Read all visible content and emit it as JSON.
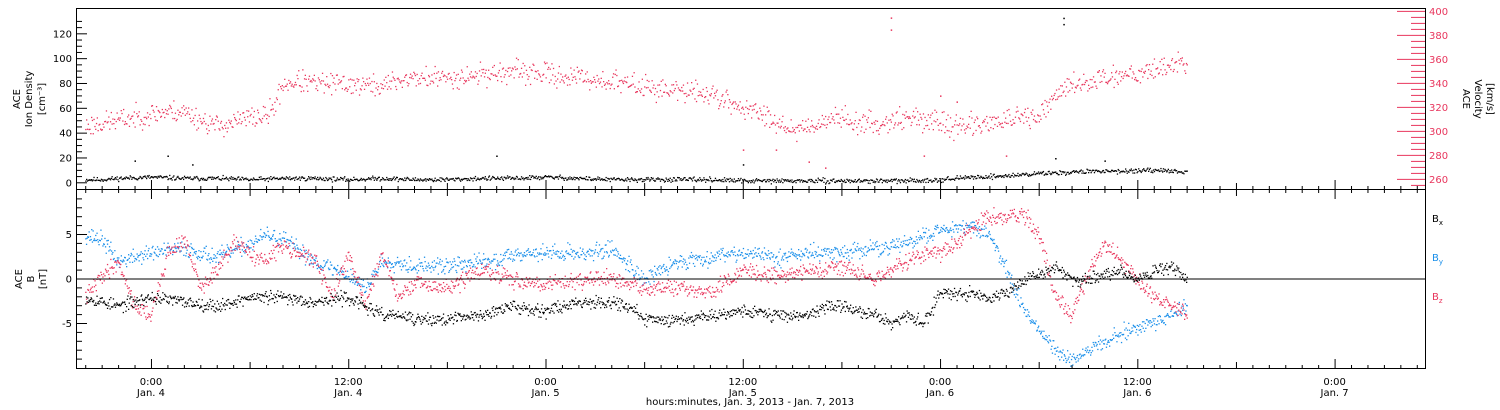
{
  "colors": {
    "black": "#000000",
    "pink": "#e8365d",
    "blue": "#1a8fea"
  },
  "chart_data": [
    {
      "type": "scatter",
      "panel": "top",
      "ylabel_left": [
        "ACE",
        "Ion Density",
        "[cm⁻³]"
      ],
      "ylabel_right": [
        "ACE",
        "Velocity",
        "[km/s]"
      ],
      "ylim_left": [
        -5,
        140
      ],
      "yticks_left": [
        0,
        20,
        40,
        60,
        80,
        100,
        120
      ],
      "ylim_right": [
        252,
        402
      ],
      "yticks_right": [
        260,
        280,
        300,
        320,
        340,
        360,
        380,
        400
      ],
      "series": [
        {
          "axis": "left",
          "color": "#000000",
          "points": [
            [
              -4,
              3
            ],
            [
              -3,
              3
            ],
            [
              -2,
              4
            ],
            [
              0,
              5
            ],
            [
              2,
              4
            ],
            [
              4,
              4
            ],
            [
              6,
              3
            ],
            [
              8,
              4
            ],
            [
              10,
              4
            ],
            [
              12,
              3
            ],
            [
              14,
              4
            ],
            [
              16,
              3
            ],
            [
              18,
              3
            ],
            [
              20,
              4
            ],
            [
              22,
              4
            ],
            [
              24,
              5
            ],
            [
              26,
              4
            ],
            [
              28,
              3
            ],
            [
              30,
              3
            ],
            [
              32,
              3
            ],
            [
              34,
              3
            ],
            [
              36,
              2
            ],
            [
              38,
              2
            ],
            [
              40,
              2
            ],
            [
              42,
              2
            ],
            [
              44,
              2
            ],
            [
              46,
              2
            ],
            [
              48,
              3
            ],
            [
              50,
              5
            ],
            [
              52,
              6
            ],
            [
              54,
              8
            ],
            [
              56,
              9
            ],
            [
              58,
              10
            ],
            [
              60,
              10
            ],
            [
              62,
              10
            ],
            [
              63,
              9
            ]
          ],
          "outliers": [
            [
              -1,
              18
            ],
            [
              1,
              22
            ],
            [
              2.5,
              15
            ],
            [
              21,
              22
            ],
            [
              36,
              15
            ],
            [
              55,
              20
            ],
            [
              58,
              18
            ],
            [
              55.5,
              133
            ],
            [
              55.5,
              128
            ]
          ]
        },
        {
          "axis": "right",
          "color": "#e8365d",
          "points": [
            [
              -4,
              305
            ],
            [
              -2,
              310
            ],
            [
              -1,
              312
            ],
            [
              0,
              315
            ],
            [
              1,
              317
            ],
            [
              2,
              317
            ],
            [
              3,
              310
            ],
            [
              4,
              305
            ],
            [
              5,
              308
            ],
            [
              6,
              312
            ],
            [
              7,
              313
            ],
            [
              7.5,
              322
            ],
            [
              8,
              340
            ],
            [
              9,
              342
            ],
            [
              10,
              340
            ],
            [
              12,
              340
            ],
            [
              14,
              338
            ],
            [
              15,
              343
            ],
            [
              16,
              345
            ],
            [
              18,
              345
            ],
            [
              20,
              348
            ],
            [
              22,
              350
            ],
            [
              24,
              348
            ],
            [
              26,
              345
            ],
            [
              28,
              342
            ],
            [
              30,
              338
            ],
            [
              32,
              334
            ],
            [
              34,
              332
            ],
            [
              35,
              325
            ],
            [
              36,
              320
            ],
            [
              37,
              315
            ],
            [
              38,
              310
            ],
            [
              39,
              302
            ],
            [
              40,
              305
            ],
            [
              41,
              310
            ],
            [
              42,
              312
            ],
            [
              43,
              308
            ],
            [
              44,
              306
            ],
            [
              45,
              310
            ],
            [
              46,
              312
            ],
            [
              48,
              308
            ],
            [
              49,
              304
            ],
            [
              50,
              306
            ],
            [
              52,
              310
            ],
            [
              54,
              312
            ],
            [
              54.5,
              320
            ],
            [
              55,
              330
            ],
            [
              56,
              340
            ],
            [
              57,
              342
            ],
            [
              58,
              345
            ],
            [
              59,
              348
            ],
            [
              60,
              350
            ],
            [
              61,
              352
            ],
            [
              62,
              356
            ],
            [
              62.5,
              358
            ],
            [
              63,
              355
            ]
          ],
          "outliers": [
            [
              45,
              395
            ],
            [
              45,
              385
            ],
            [
              40,
              275
            ],
            [
              41,
              270
            ],
            [
              47,
              280
            ],
            [
              52,
              280
            ],
            [
              48,
              330
            ],
            [
              49,
              325
            ],
            [
              36,
              285
            ],
            [
              38,
              285
            ]
          ]
        }
      ]
    },
    {
      "type": "scatter",
      "panel": "bottom",
      "ylabel_left": [
        "ACE",
        "B",
        "[nT]"
      ],
      "ylim": [
        -10,
        10
      ],
      "yticks": [
        -5,
        0,
        5
      ],
      "zero_line": true,
      "legend_position": "right",
      "series": [
        {
          "name": "Bx",
          "legend": [
            "B",
            "x"
          ],
          "color": "#000000",
          "points": [
            [
              -4,
              -2
            ],
            [
              -2,
              -3
            ],
            [
              0,
              -2
            ],
            [
              2,
              -2.5
            ],
            [
              4,
              -3
            ],
            [
              6,
              -2
            ],
            [
              8,
              -2
            ],
            [
              10,
              -2.5
            ],
            [
              12,
              -2
            ],
            [
              13,
              -3
            ],
            [
              14,
              -4
            ],
            [
              15,
              -4
            ],
            [
              16,
              -4.5
            ],
            [
              17,
              -4.5
            ],
            [
              18,
              -4.5
            ],
            [
              20,
              -4
            ],
            [
              22,
              -3
            ],
            [
              24,
              -3.5
            ],
            [
              26,
              -2.5
            ],
            [
              28,
              -2.5
            ],
            [
              29,
              -3
            ],
            [
              30,
              -4.5
            ],
            [
              32,
              -4.5
            ],
            [
              34,
              -4
            ],
            [
              36,
              -3.5
            ],
            [
              38,
              -4
            ],
            [
              40,
              -4
            ],
            [
              41,
              -3
            ],
            [
              42,
              -3
            ],
            [
              43,
              -3.5
            ],
            [
              44,
              -4
            ],
            [
              45,
              -5
            ],
            [
              46,
              -4
            ],
            [
              47,
              -5
            ],
            [
              48,
              -1.5
            ],
            [
              50,
              -1.5
            ],
            [
              51,
              -2
            ],
            [
              52,
              -1.5
            ],
            [
              53,
              0
            ],
            [
              54,
              0.5
            ],
            [
              55,
              1.5
            ],
            [
              56,
              0
            ],
            [
              57,
              0
            ],
            [
              58,
              0.5
            ],
            [
              59,
              1
            ],
            [
              60,
              0
            ],
            [
              61,
              1
            ],
            [
              62,
              1.5
            ],
            [
              63,
              0
            ]
          ]
        },
        {
          "name": "By",
          "legend": [
            "B",
            "y"
          ],
          "color": "#1a8fea",
          "points": [
            [
              -4,
              5
            ],
            [
              -3,
              4.5
            ],
            [
              -2,
              2
            ],
            [
              0,
              3
            ],
            [
              2,
              3.5
            ],
            [
              4,
              2.5
            ],
            [
              6,
              4
            ],
            [
              7,
              5
            ],
            [
              8,
              4.5
            ],
            [
              10,
              2
            ],
            [
              12,
              0.5
            ],
            [
              13,
              -1
            ],
            [
              14,
              2
            ],
            [
              15,
              2
            ],
            [
              16,
              1.5
            ],
            [
              18,
              1.5
            ],
            [
              20,
              2
            ],
            [
              21,
              2
            ],
            [
              22,
              3
            ],
            [
              24,
              3
            ],
            [
              26,
              3
            ],
            [
              27,
              3
            ],
            [
              28,
              3.5
            ],
            [
              30,
              0
            ],
            [
              31,
              1
            ],
            [
              32,
              2
            ],
            [
              34,
              2.5
            ],
            [
              35,
              3
            ],
            [
              36,
              3
            ],
            [
              38,
              2.5
            ],
            [
              40,
              3
            ],
            [
              42,
              3
            ],
            [
              44,
              3.5
            ],
            [
              46,
              4
            ],
            [
              47,
              5
            ],
            [
              48,
              5.5
            ],
            [
              49,
              6
            ],
            [
              50,
              6
            ],
            [
              51,
              5
            ],
            [
              52,
              1
            ],
            [
              53,
              -3
            ],
            [
              54,
              -6
            ],
            [
              55,
              -8
            ],
            [
              56,
              -9
            ],
            [
              57,
              -8
            ],
            [
              58,
              -7
            ],
            [
              59,
              -6
            ],
            [
              60,
              -5.5
            ],
            [
              61,
              -5
            ],
            [
              62,
              -4
            ],
            [
              63,
              -3
            ]
          ]
        },
        {
          "name": "Bz",
          "legend": [
            "B",
            "z"
          ],
          "color": "#e8365d",
          "points": [
            [
              -4,
              -2
            ],
            [
              -3,
              0.5
            ],
            [
              -2,
              2
            ],
            [
              -1,
              -3
            ],
            [
              0,
              -4
            ],
            [
              1,
              3
            ],
            [
              2,
              4.5
            ],
            [
              3,
              -1
            ],
            [
              4,
              1
            ],
            [
              5,
              4
            ],
            [
              6,
              3
            ],
            [
              7,
              2
            ],
            [
              8,
              4
            ],
            [
              9,
              3
            ],
            [
              10,
              2
            ],
            [
              11,
              -2
            ],
            [
              12,
              3
            ],
            [
              13,
              -3
            ],
            [
              14,
              3
            ],
            [
              15,
              -2
            ],
            [
              16,
              -0.5
            ],
            [
              18,
              -1
            ],
            [
              20,
              1
            ],
            [
              22,
              0
            ],
            [
              24,
              -0.5
            ],
            [
              26,
              0
            ],
            [
              28,
              0
            ],
            [
              30,
              -1
            ],
            [
              32,
              -1
            ],
            [
              34,
              -1.5
            ],
            [
              36,
              1
            ],
            [
              38,
              0.5
            ],
            [
              40,
              1
            ],
            [
              42,
              1.5
            ],
            [
              44,
              0
            ],
            [
              45,
              1
            ],
            [
              46,
              2
            ],
            [
              47,
              3
            ],
            [
              48,
              3
            ],
            [
              49,
              4
            ],
            [
              50,
              6
            ],
            [
              51,
              7
            ],
            [
              52,
              7
            ],
            [
              53,
              7.5
            ],
            [
              54,
              5
            ],
            [
              55,
              -2
            ],
            [
              56,
              -4
            ],
            [
              57,
              1
            ],
            [
              58,
              4
            ],
            [
              59,
              2
            ],
            [
              60,
              0
            ],
            [
              61,
              -2
            ],
            [
              62,
              -3
            ],
            [
              63,
              -4
            ]
          ]
        }
      ]
    }
  ],
  "xaxis": {
    "range_hours": [
      -4.5,
      77.5
    ],
    "major_ticks": [
      {
        "h": 0,
        "time": "0:00",
        "date": "Jan. 4"
      },
      {
        "h": 12,
        "time": "12:00",
        "date": "Jan. 4"
      },
      {
        "h": 24,
        "time": "0:00",
        "date": "Jan. 5"
      },
      {
        "h": 36,
        "time": "12:00",
        "date": "Jan. 5"
      },
      {
        "h": 48,
        "time": "0:00",
        "date": "Jan. 6"
      },
      {
        "h": 60,
        "time": "12:00",
        "date": "Jan. 6"
      },
      {
        "h": 72,
        "time": "0:00",
        "date": "Jan. 7"
      }
    ],
    "title": "hours:minutes, Jan.  3, 2013 - Jan.  7, 2013"
  }
}
